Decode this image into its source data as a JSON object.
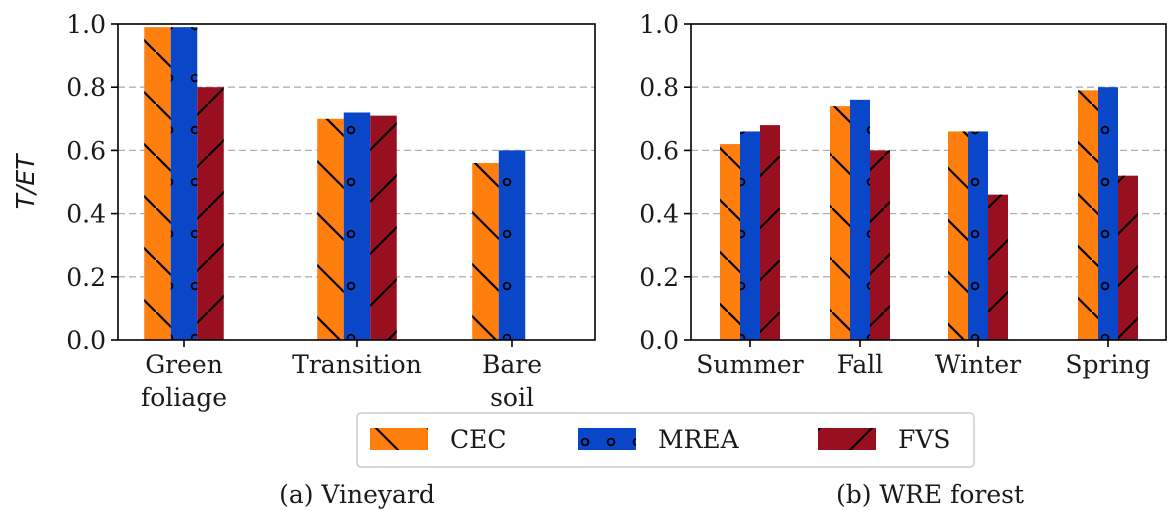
{
  "chart_data": [
    {
      "type": "bar",
      "caption": "(a) Vineyard",
      "ylabel": "T/ET",
      "ylim": [
        0,
        1.0
      ],
      "yticks": [
        "0.0",
        "0.2",
        "0.4",
        "0.6",
        "0.8",
        "1.0"
      ],
      "grid": "y-dashed",
      "categories": [
        [
          "Green",
          "foliage"
        ],
        [
          "Transition"
        ],
        [
          "Bare",
          "soil"
        ]
      ],
      "series": [
        {
          "name": "CEC",
          "values": [
            0.99,
            0.7,
            0.56
          ]
        },
        {
          "name": "MREA",
          "values": [
            0.99,
            0.72,
            0.6
          ]
        },
        {
          "name": "FVS",
          "values": [
            0.8,
            0.71,
            null
          ]
        }
      ]
    },
    {
      "type": "bar",
      "caption": "(b) WRE forest",
      "ylim": [
        0,
        1.0
      ],
      "yticks": [
        "0.0",
        "0.2",
        "0.4",
        "0.6",
        "0.8",
        "1.0"
      ],
      "grid": "y-dashed",
      "categories": [
        [
          "Summer"
        ],
        [
          "Fall"
        ],
        [
          "Winter"
        ],
        [
          "Spring"
        ]
      ],
      "series": [
        {
          "name": "CEC",
          "values": [
            0.62,
            0.74,
            0.66,
            0.79
          ]
        },
        {
          "name": "MREA",
          "values": [
            0.66,
            0.76,
            0.66,
            0.8
          ]
        },
        {
          "name": "FVS",
          "values": [
            0.68,
            0.6,
            0.46,
            0.52
          ]
        }
      ]
    }
  ],
  "legend": {
    "placement": "bottom-center",
    "entries": [
      {
        "label": "CEC",
        "color": "#ff7f0e",
        "hatch": "backslash"
      },
      {
        "label": "MREA",
        "color": "#0a47c8",
        "hatch": "dots"
      },
      {
        "label": "FVS",
        "color": "#98101f",
        "hatch": "slash"
      }
    ]
  },
  "colors": {
    "CEC": "#ff7f0e",
    "MREA": "#0a47c8",
    "FVS": "#98101f",
    "grid": "#b0b0b0"
  }
}
